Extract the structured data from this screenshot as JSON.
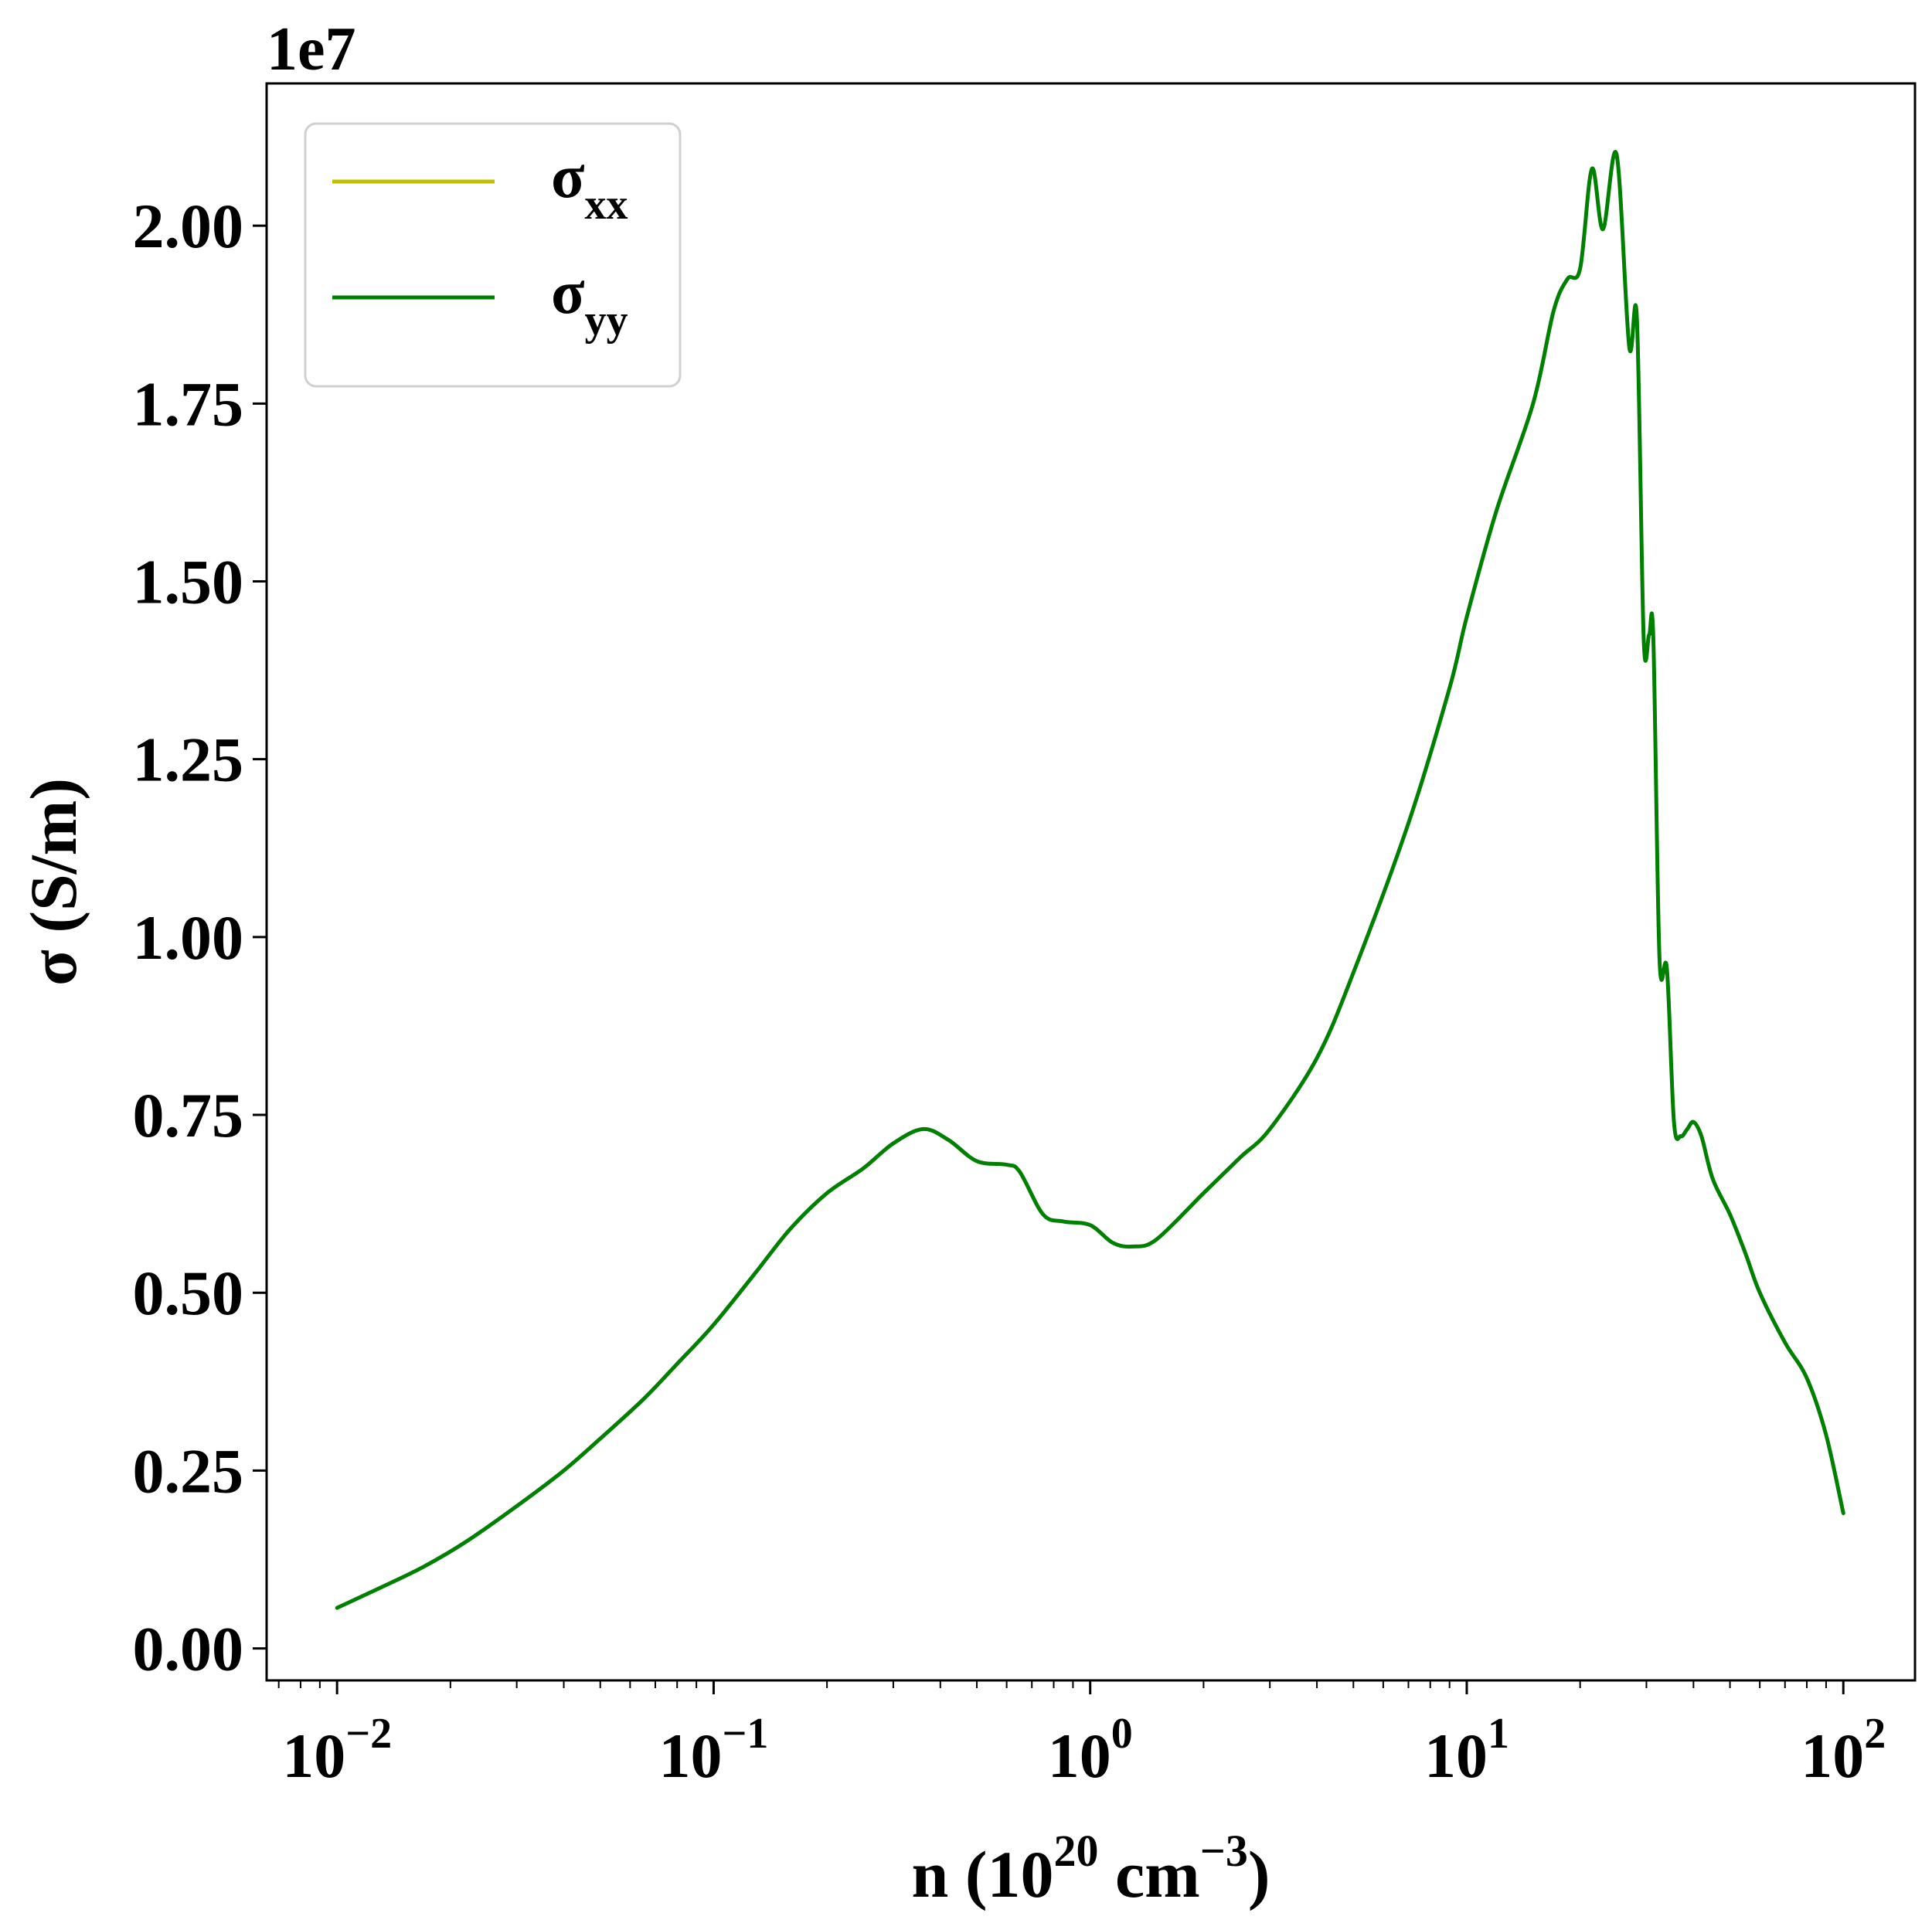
{
  "chart_data": {
    "type": "line",
    "xscale": "log",
    "xlim": [
      0.0065,
      155
    ],
    "ylim": [
      -0.045,
      2.2
    ],
    "y_offset_label": "1e7",
    "xticks": [
      {
        "value": 0.01,
        "base": "10",
        "exp": "−2"
      },
      {
        "value": 0.1,
        "base": "10",
        "exp": "−1"
      },
      {
        "value": 1,
        "base": "10",
        "exp": "0"
      },
      {
        "value": 10,
        "base": "10",
        "exp": "1"
      },
      {
        "value": 100,
        "base": "10",
        "exp": "2"
      }
    ],
    "yticks": [
      {
        "value": 0.0,
        "label": "0.00"
      },
      {
        "value": 0.25,
        "label": "0.25"
      },
      {
        "value": 0.5,
        "label": "0.50"
      },
      {
        "value": 0.75,
        "label": "0.75"
      },
      {
        "value": 1.0,
        "label": "1.00"
      },
      {
        "value": 1.25,
        "label": "1.25"
      },
      {
        "value": 1.5,
        "label": "1.50"
      },
      {
        "value": 1.75,
        "label": "1.75"
      },
      {
        "value": 2.0,
        "label": "2.00"
      }
    ],
    "xlabel": {
      "pre": "n (10",
      "sup1": "20",
      "mid": " cm",
      "sup2": "−3",
      "post": ")"
    },
    "ylabel": "σ (S/m)",
    "legend_position": "upper-left",
    "series": [
      {
        "name": "σxx",
        "label_main": "σ",
        "label_sub": "xx",
        "color": "#bfbf00",
        "x": [],
        "y": []
      },
      {
        "name": "σyy",
        "label_main": "σ",
        "label_sub": "yy",
        "color": "#008000",
        "x": [
          0.01,
          0.013,
          0.017,
          0.022,
          0.03,
          0.04,
          0.05,
          0.065,
          0.08,
          0.1,
          0.13,
          0.16,
          0.2,
          0.25,
          0.3,
          0.36,
          0.42,
          0.5,
          0.6,
          0.65,
          0.75,
          0.85,
          1.0,
          1.15,
          1.3,
          1.5,
          2.0,
          2.5,
          3.0,
          4.0,
          5.0,
          7.0,
          9.0,
          10.0,
          12.0,
          15.0,
          17.0,
          18.5,
          20.0,
          21.5,
          23.0,
          25.0,
          27.0,
          28.3,
          29.5,
          30.5,
          31.3,
          32.5,
          34.0,
          35.5,
          37.0,
          38.5,
          40.0,
          42.0,
          45.0,
          50.0,
          55.0,
          60.0,
          70.0,
          80.0,
          90.0,
          100.0
        ],
        "y": [
          0.057,
          0.085,
          0.115,
          0.15,
          0.2,
          0.25,
          0.295,
          0.35,
          0.4,
          0.455,
          0.53,
          0.59,
          0.64,
          0.675,
          0.71,
          0.73,
          0.715,
          0.685,
          0.68,
          0.67,
          0.61,
          0.6,
          0.595,
          0.57,
          0.565,
          0.575,
          0.64,
          0.69,
          0.73,
          0.83,
          0.95,
          1.16,
          1.35,
          1.45,
          1.6,
          1.75,
          1.88,
          1.925,
          1.94,
          2.08,
          1.995,
          2.1,
          1.83,
          1.87,
          1.42,
          1.425,
          1.42,
          0.97,
          0.955,
          0.74,
          0.72,
          0.73,
          0.74,
          0.72,
          0.66,
          0.61,
          0.555,
          0.5,
          0.43,
          0.38,
          0.3,
          0.19
        ]
      }
    ]
  }
}
